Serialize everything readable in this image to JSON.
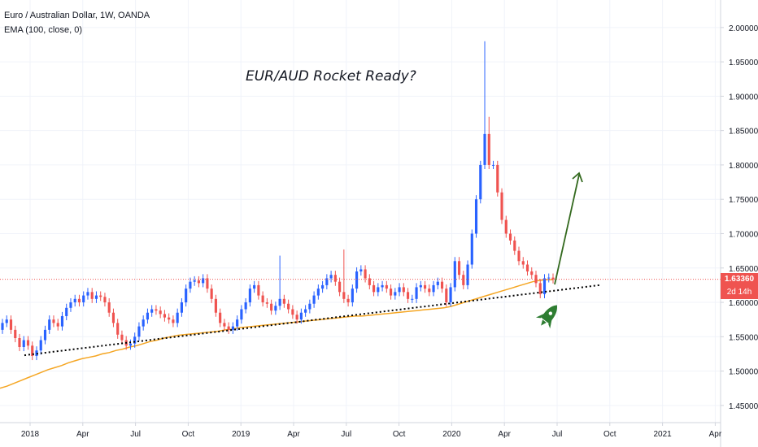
{
  "chart_data": {
    "type": "candlestick",
    "title": "Euro / Australian Dollar, 1W, OANDA",
    "indicator": "EMA (100, close, 0)",
    "annotation": "EUR/AUD Rocket Ready?",
    "ylim": [
      1.425,
      2.04
    ],
    "y_ticks": [
      "2.00000",
      "1.95000",
      "1.90000",
      "1.85000",
      "1.80000",
      "1.75000",
      "1.70000",
      "1.65000",
      "1.60000",
      "1.55000",
      "1.50000",
      "1.45000"
    ],
    "y_tick_values": [
      2.0,
      1.95,
      1.9,
      1.85,
      1.8,
      1.75,
      1.7,
      1.65,
      1.6,
      1.55,
      1.5,
      1.45
    ],
    "x_ticks": [
      "2018",
      "Apr",
      "Jul",
      "Oct",
      "2019",
      "Apr",
      "Jul",
      "Oct",
      "2020",
      "Apr",
      "Jul",
      "Oct",
      "2021",
      "Apr"
    ],
    "x_tick_dates": [
      "2018-01",
      "2018-04",
      "2018-07",
      "2018-10",
      "2019-01",
      "2019-04",
      "2019-07",
      "2019-10",
      "2020-01",
      "2020-04",
      "2020-07",
      "2020-10",
      "2021-01",
      "2021-04"
    ],
    "current_price": "1.63360",
    "countdown": "2d 14h",
    "colors": {
      "up": "#2962ff",
      "down": "#ef5350",
      "ema": "#f5a623",
      "trendline": "#000000",
      "arrow": "#33691e",
      "rocket": "#2e7d32",
      "price_badge": "#ef5350",
      "time_badge": "#ef5350"
    },
    "closes": [
      1.57,
      1.575,
      1.56,
      1.548,
      1.535,
      1.545,
      1.537,
      1.522,
      1.53,
      1.545,
      1.56,
      1.575,
      1.57,
      1.565,
      1.58,
      1.592,
      1.6,
      1.605,
      1.6,
      1.61,
      1.615,
      1.605,
      1.61,
      1.608,
      1.6,
      1.585,
      1.57,
      1.553,
      1.545,
      1.537,
      1.54,
      1.55,
      1.565,
      1.575,
      1.585,
      1.59,
      1.588,
      1.583,
      1.578,
      1.575,
      1.57,
      1.585,
      1.6,
      1.62,
      1.63,
      1.632,
      1.628,
      1.635,
      1.62,
      1.605,
      1.585,
      1.57,
      1.565,
      1.56,
      1.565,
      1.575,
      1.59,
      1.6,
      1.62,
      1.625,
      1.61,
      1.6,
      1.598,
      1.588,
      1.595,
      1.605,
      1.598,
      1.59,
      1.582,
      1.575,
      1.585,
      1.59,
      1.598,
      1.61,
      1.62,
      1.625,
      1.635,
      1.64,
      1.63,
      1.615,
      1.605,
      1.6,
      1.62,
      1.645,
      1.648,
      1.635,
      1.625,
      1.615,
      1.622,
      1.625,
      1.62,
      1.61,
      1.615,
      1.622,
      1.615,
      1.605,
      1.605,
      1.622,
      1.625,
      1.62,
      1.615,
      1.625,
      1.63,
      1.62,
      1.6,
      1.622,
      1.66,
      1.64,
      1.625,
      1.655,
      1.7,
      1.75,
      1.8,
      1.845,
      1.8,
      1.8,
      1.76,
      1.72,
      1.7,
      1.69,
      1.675,
      1.66,
      1.655,
      1.645,
      1.64,
      1.628,
      1.612,
      1.635,
      1.636,
      1.6336
    ],
    "highs_extra_wicks": {
      "65": 1.668,
      "80": 1.677,
      "113": 1.98,
      "114": 1.87
    },
    "ema": [
      1.475,
      1.478,
      1.482,
      1.486,
      1.49,
      1.494,
      1.498,
      1.502,
      1.505,
      1.508,
      1.512,
      1.515,
      1.518,
      1.52,
      1.522,
      1.525,
      1.527,
      1.53,
      1.532,
      1.535,
      1.537,
      1.54,
      1.543,
      1.545,
      1.548,
      1.55,
      1.552,
      1.553,
      1.554,
      1.555,
      1.556,
      1.557,
      1.558,
      1.56,
      1.561,
      1.563,
      1.564,
      1.565,
      1.566,
      1.567,
      1.568,
      1.569,
      1.57,
      1.571,
      1.572,
      1.573,
      1.574,
      1.575,
      1.576,
      1.577,
      1.578,
      1.579,
      1.58,
      1.58,
      1.581,
      1.582,
      1.583,
      1.584,
      1.585,
      1.586,
      1.587,
      1.588,
      1.589,
      1.59,
      1.591,
      1.592,
      1.594,
      1.597,
      1.6,
      1.603,
      1.606,
      1.609,
      1.612,
      1.615,
      1.618,
      1.621,
      1.624,
      1.627,
      1.63,
      1.632,
      1.633,
      1.633
    ]
  }
}
